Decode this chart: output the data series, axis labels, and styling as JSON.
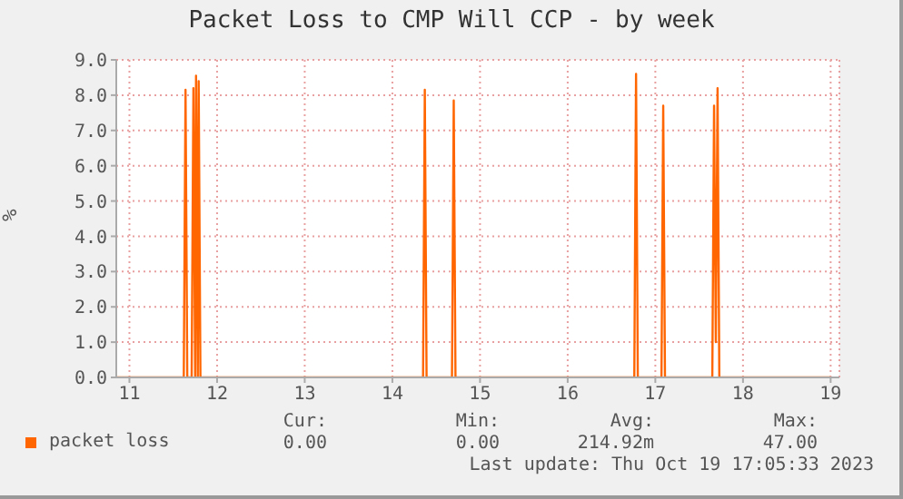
{
  "chart_data": {
    "type": "line",
    "title": "Packet Loss to CMP Will CCP - by week",
    "ylabel": "%",
    "x": [
      10.85,
      11.62,
      11.64,
      11.66,
      11.71,
      11.73,
      11.75,
      11.76,
      11.78,
      11.79,
      11.81,
      14.35,
      14.37,
      14.39,
      14.68,
      14.7,
      14.72,
      16.76,
      16.78,
      16.8,
      17.07,
      17.09,
      17.11,
      17.65,
      17.67,
      17.69,
      17.71,
      17.73,
      19.0
    ],
    "series": [
      {
        "name": "packet loss",
        "color": "#ff6600",
        "values": [
          0,
          0,
          8.15,
          0,
          0,
          8.2,
          0,
          8.55,
          0,
          8.4,
          0,
          0,
          8.15,
          0,
          0,
          7.85,
          0,
          0,
          8.6,
          0,
          0,
          7.7,
          0,
          0,
          7.7,
          1.0,
          8.2,
          0,
          0
        ]
      }
    ],
    "xlim": [
      10.85,
      19.1
    ],
    "xticks": [
      11,
      12,
      13,
      14,
      15,
      16,
      17,
      18,
      19
    ],
    "ylim": [
      0,
      9
    ],
    "yticks": [
      {
        "value": 0,
        "label": "0.0"
      },
      {
        "value": 1,
        "label": "1.0"
      },
      {
        "value": 2,
        "label": "2.0"
      },
      {
        "value": 3,
        "label": "3.0"
      },
      {
        "value": 4,
        "label": "4.0"
      },
      {
        "value": 5,
        "label": "5.0"
      },
      {
        "value": 6,
        "label": "6.0"
      },
      {
        "value": 7,
        "label": "7.0"
      },
      {
        "value": 8,
        "label": "8.0"
      },
      {
        "value": 9,
        "label": "9.0"
      }
    ],
    "grid": true,
    "legend": "bottom left",
    "marker": "none",
    "annotations": [
      "Cur:",
      "0.00",
      "Min:",
      "0.00",
      "Avg:",
      "214.92m",
      "Max:",
      "47.00",
      "Last update: Thu Oct 19 17:05:33 2023"
    ]
  }
}
